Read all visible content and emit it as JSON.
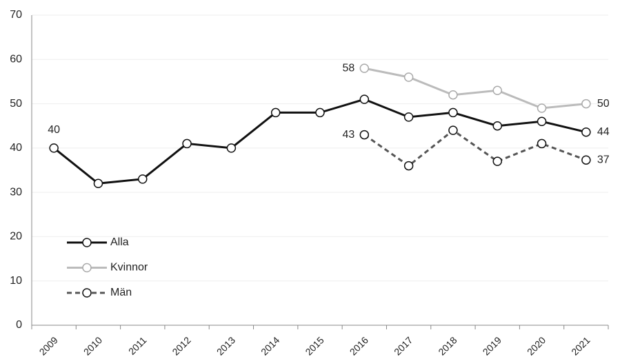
{
  "chart_data": {
    "type": "line",
    "categories": [
      "2009",
      "2010",
      "2011",
      "2012",
      "2013",
      "2014",
      "2015",
      "2016",
      "2017",
      "2018",
      "2019",
      "2020",
      "2021"
    ],
    "series": [
      {
        "name": "Alla",
        "color": "#111111",
        "dash": false,
        "values": [
          40,
          32,
          33,
          41,
          40,
          48,
          48,
          51,
          47,
          48,
          45,
          46,
          43.6
        ],
        "value_labels": [
          "40",
          null,
          null,
          null,
          null,
          null,
          null,
          null,
          null,
          null,
          null,
          null,
          "44"
        ]
      },
      {
        "name": "Kvinnor",
        "color": "#bbbbbb",
        "dash": false,
        "values": [
          null,
          null,
          null,
          null,
          null,
          null,
          null,
          58,
          56,
          52,
          53,
          49,
          50
        ],
        "value_labels": [
          null,
          null,
          null,
          null,
          null,
          null,
          null,
          "58",
          null,
          null,
          null,
          null,
          "50"
        ]
      },
      {
        "name": "Män",
        "color": "#555555",
        "dash": true,
        "values": [
          null,
          null,
          null,
          null,
          null,
          null,
          null,
          43,
          36,
          44,
          37,
          41,
          37.3
        ],
        "value_labels": [
          null,
          null,
          null,
          null,
          null,
          null,
          null,
          "43",
          null,
          null,
          null,
          null,
          "37"
        ]
      }
    ],
    "ylim": [
      0,
      70
    ],
    "yticks": [
      0,
      10,
      20,
      30,
      40,
      50,
      60,
      70
    ],
    "grid": true,
    "legend": "lower left"
  }
}
